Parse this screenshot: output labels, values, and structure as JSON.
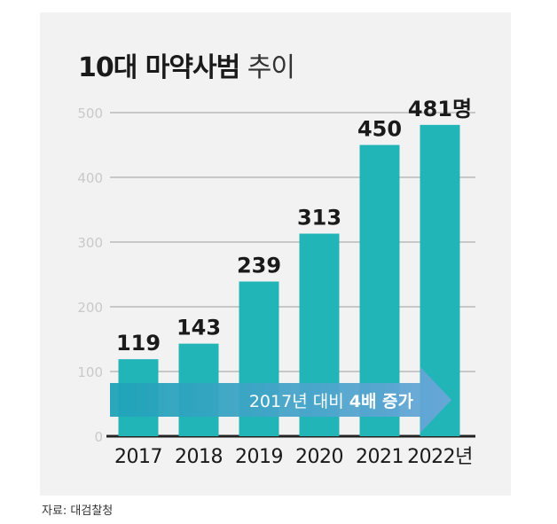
{
  "title": {
    "bold": "10대 마약사범",
    "light": "추이"
  },
  "source": "자료: 대검찰청",
  "colors": {
    "bar": "#22b5b8",
    "arrow_start": "#1fa3b8",
    "arrow_end": "#6aa6d8",
    "grid": "#c8c8c8",
    "tick_label": "#c9c9c9",
    "value_label": "#1a1a1a",
    "panel": "#f2f2f2"
  },
  "chart_data": {
    "type": "bar",
    "categories": [
      "2017",
      "2018",
      "2019",
      "2020",
      "2021",
      "2022년"
    ],
    "values": [
      119,
      143,
      239,
      313,
      450,
      481
    ],
    "value_labels": [
      "119",
      "143",
      "239",
      "313",
      "450",
      "481명"
    ],
    "ylim": [
      0,
      500
    ],
    "yticks": [
      0,
      100,
      200,
      300,
      400,
      500
    ],
    "grid": true,
    "annotation": {
      "text_plain": "2017년 대비 ",
      "text_bold": "4배 증가"
    }
  }
}
